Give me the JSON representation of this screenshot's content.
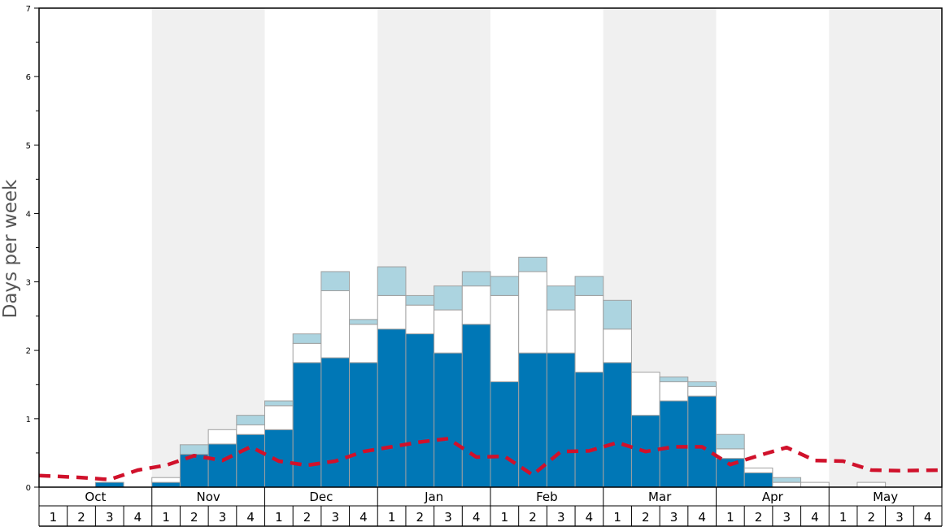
{
  "chart_data": {
    "type": "bar",
    "ylabel": "Days per week",
    "ylim": [
      0,
      7
    ],
    "y_ticks": [
      "0",
      "1",
      "2",
      "3",
      "4",
      "5",
      "6",
      "7"
    ],
    "months": [
      "Oct",
      "Nov",
      "Dec",
      "Jan",
      "Feb",
      "Mar",
      "Apr",
      "May"
    ],
    "week_labels": [
      "1",
      "2",
      "3",
      "4"
    ],
    "shaded_months": [
      "Nov",
      "Jan",
      "Mar",
      "May"
    ],
    "colors": {
      "blue": "#0077b6",
      "white": "#ffffff",
      "light_blue": "#acd4e0",
      "average_line": "#d0112b",
      "shade": "#f0f0f0",
      "bar_border": "#a0a0a0"
    },
    "series": [
      {
        "key": "blue",
        "values": [
          0,
          0,
          0.07,
          0,
          0.07,
          0.48,
          0.63,
          0.77,
          0.84,
          1.82,
          1.89,
          1.82,
          2.31,
          2.24,
          1.96,
          2.38,
          1.54,
          1.96,
          1.96,
          1.68,
          1.82,
          1.05,
          1.26,
          1.33,
          0.42,
          0.21,
          0,
          0,
          0,
          0,
          0,
          0
        ]
      },
      {
        "key": "white",
        "values": [
          0,
          0,
          0,
          0,
          0.07,
          0,
          0.21,
          0.14,
          0.35,
          0.28,
          0.98,
          0.56,
          0.49,
          0.42,
          0.63,
          0.56,
          1.26,
          1.19,
          0.63,
          1.12,
          0.49,
          0.63,
          0.28,
          0.14,
          0.14,
          0.07,
          0.07,
          0.07,
          0,
          0.07,
          0,
          0
        ]
      },
      {
        "key": "light_blue",
        "values": [
          0,
          0,
          0,
          0,
          0,
          0.14,
          0,
          0.14,
          0.07,
          0.14,
          0.28,
          0.07,
          0.42,
          0.14,
          0.35,
          0.21,
          0.28,
          0.21,
          0.35,
          0.28,
          0.42,
          0,
          0.07,
          0.07,
          0.21,
          0,
          0.07,
          0,
          0,
          0,
          0,
          0
        ]
      }
    ],
    "average_line": [
      0.17,
      0.14,
      0.11,
      0.25,
      0.32,
      0.46,
      0.39,
      0.59,
      0.38,
      0.32,
      0.38,
      0.52,
      0.59,
      0.66,
      0.71,
      0.44,
      0.45,
      0.18,
      0.52,
      0.53,
      0.65,
      0.52,
      0.59,
      0.59,
      0.33,
      0.46,
      0.58,
      0.39,
      0.38,
      0.25,
      0.24,
      0.25
    ]
  }
}
